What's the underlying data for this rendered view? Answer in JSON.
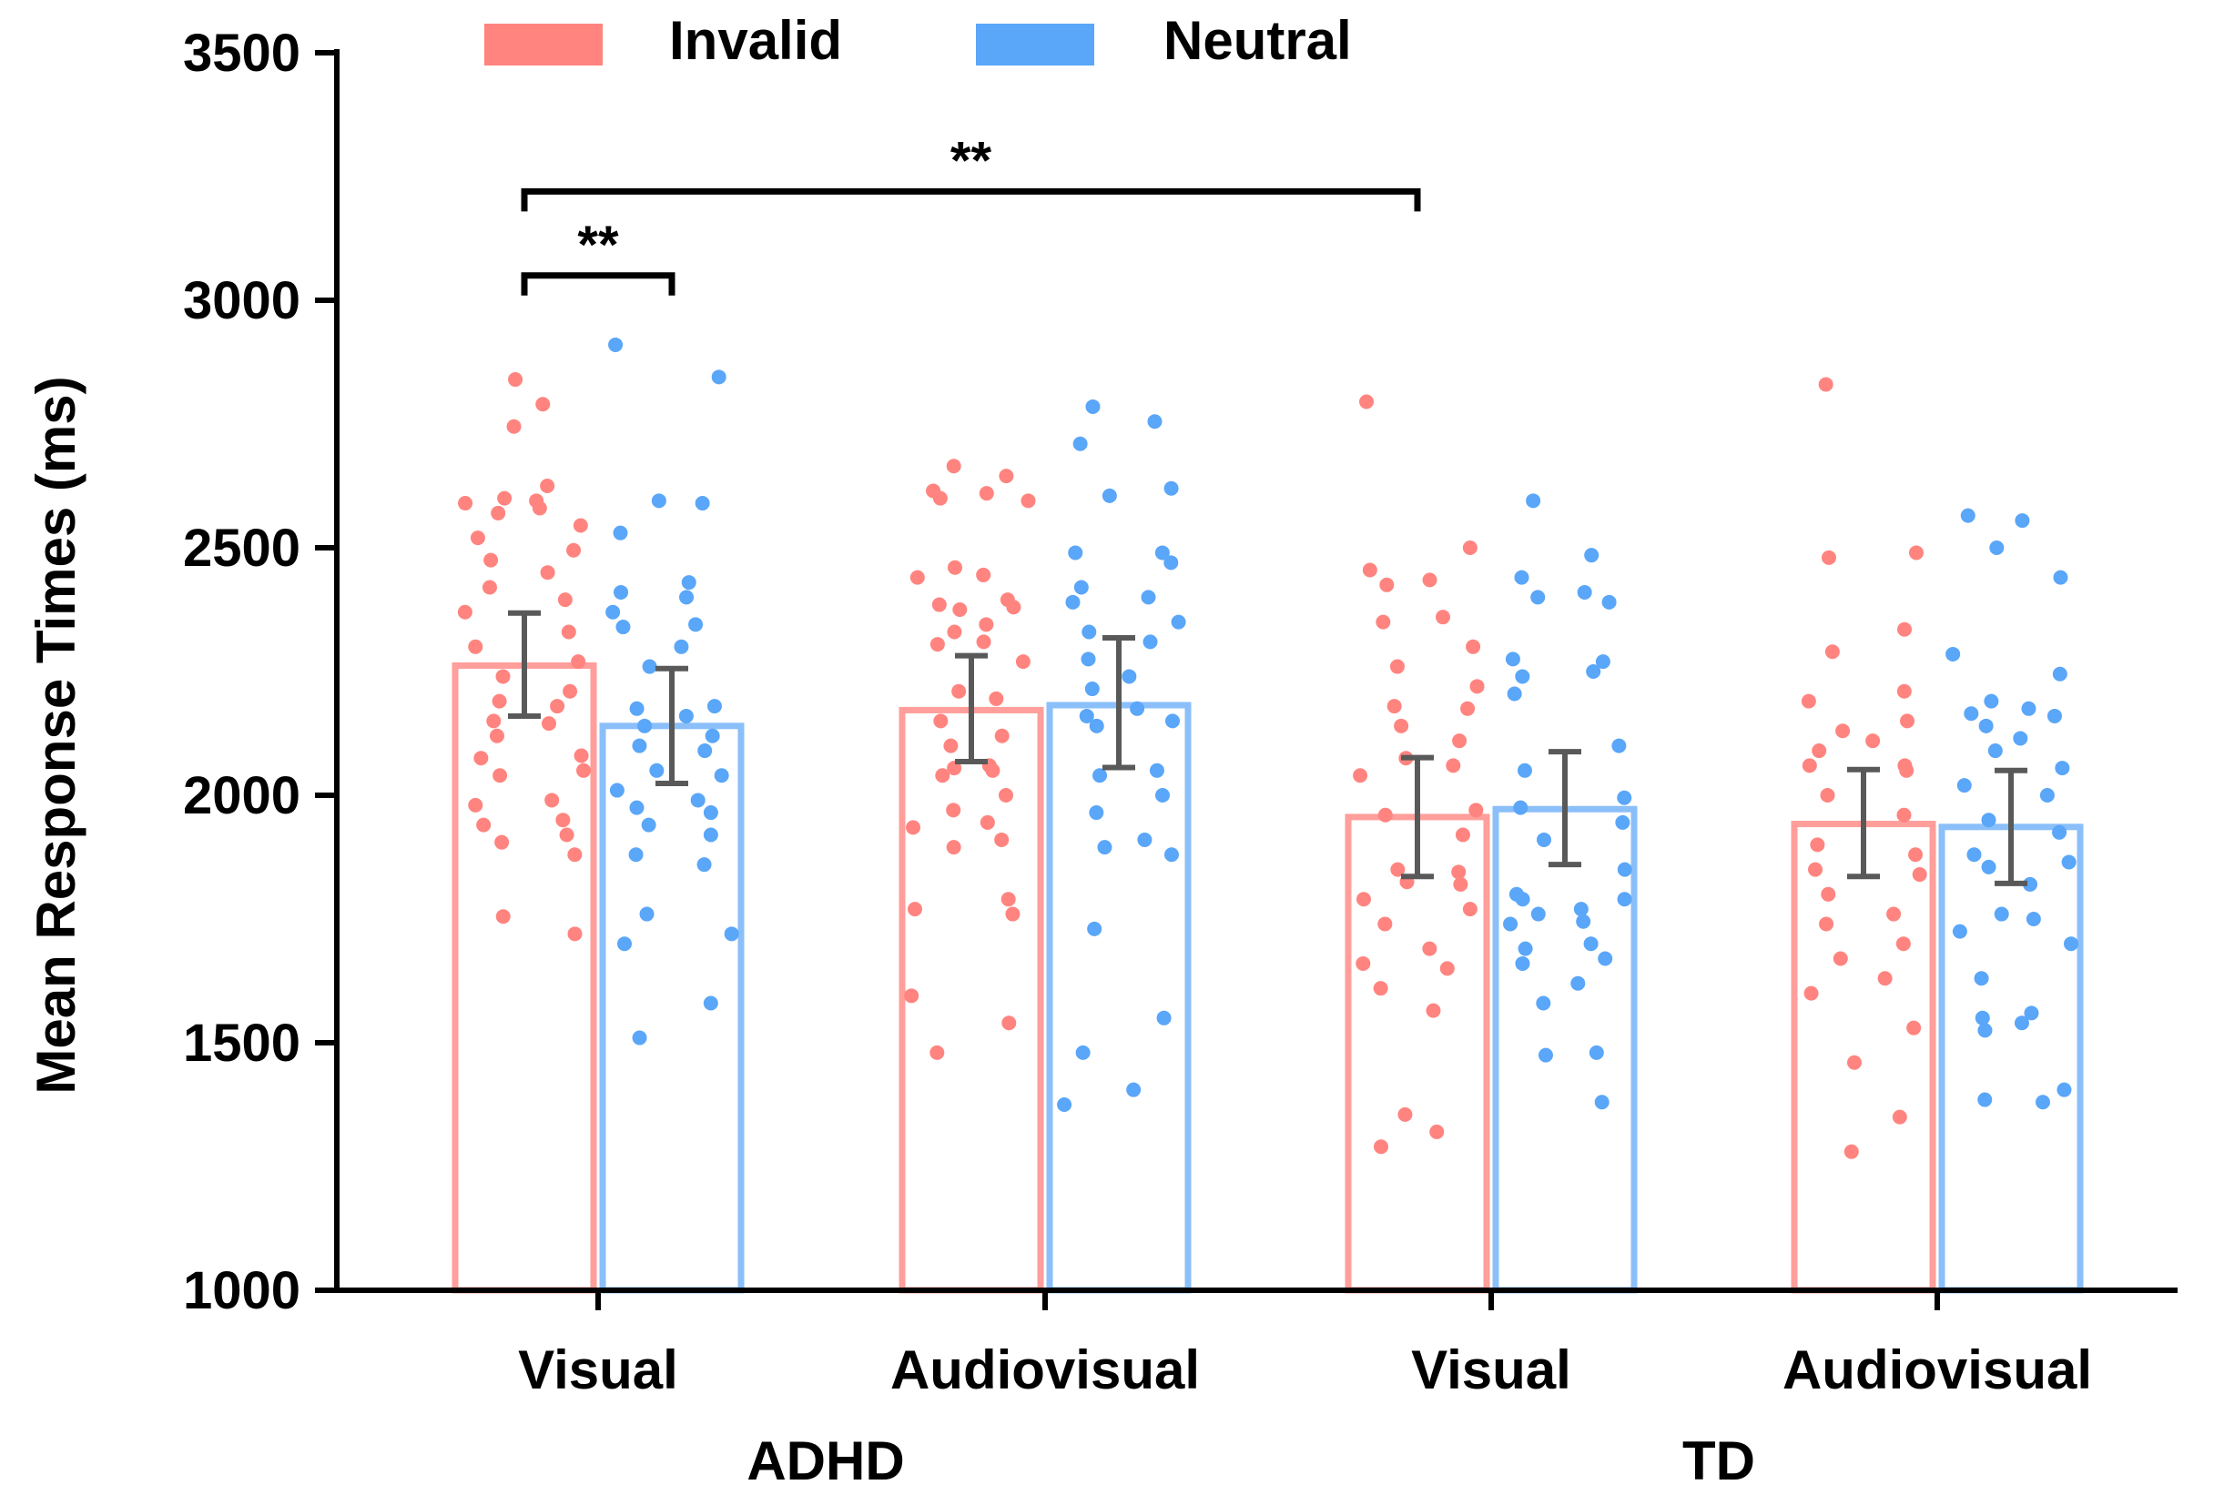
{
  "chart_data": {
    "type": "bar",
    "title": "",
    "xlabel": "",
    "ylabel": "Mean Response Times (ms)",
    "ylim": [
      1000,
      3500
    ],
    "yticks": [
      1000,
      1500,
      2000,
      2500,
      3000,
      3500
    ],
    "grid": false,
    "legend_position": "top",
    "groups": [
      {
        "label": "ADHD",
        "categories": [
          "Visual",
          "Audiovisual"
        ]
      },
      {
        "label": "TD",
        "categories": [
          "Visual",
          "Audiovisual"
        ]
      }
    ],
    "categories": [
      "Visual",
      "Audiovisual",
      "Visual",
      "Audiovisual"
    ],
    "series": [
      {
        "name": "Invalid",
        "color": "#FF847F",
        "bar_edge_color": "#FF9E9A",
        "values": [
          2262,
          2172,
          1956,
          1942
        ],
        "errors": [
          [
            2160,
            2368
          ],
          [
            2068,
            2282
          ],
          [
            1836,
            2076
          ],
          [
            1836,
            2052
          ]
        ],
        "points": [
          [
            2840,
            2790,
            2745,
            2625,
            2600,
            2595,
            2590,
            2580,
            2570,
            2545,
            2520,
            2495,
            2475,
            2450,
            2420,
            2395,
            2370,
            2330,
            2300,
            2270,
            2240,
            2210,
            2190,
            2180,
            2150,
            2145,
            2120,
            2080,
            2075,
            2050,
            2040,
            1990,
            1980,
            1950,
            1940,
            1920,
            1905,
            1880,
            1755,
            1720
          ],
          [
            2665,
            2645,
            2615,
            2610,
            2600,
            2595,
            2460,
            2445,
            2440,
            2395,
            2385,
            2380,
            2375,
            2345,
            2330,
            2310,
            2305,
            2270,
            2210,
            2195,
            2150,
            2120,
            2100,
            2060,
            2055,
            2050,
            2040,
            2000,
            1970,
            1945,
            1935,
            1910,
            1895,
            1790,
            1770,
            1760,
            1595,
            1540,
            1480
          ],
          [
            2795,
            2500,
            2455,
            2435,
            2425,
            2360,
            2350,
            2300,
            2260,
            2220,
            2180,
            2175,
            2140,
            2110,
            2075,
            2060,
            2040,
            1970,
            1960,
            1920,
            1850,
            1845,
            1825,
            1820,
            1790,
            1770,
            1740,
            1690,
            1660,
            1650,
            1610,
            1565,
            1355,
            1320,
            1290
          ],
          [
            2830,
            2490,
            2480,
            2335,
            2290,
            2210,
            2190,
            2150,
            2130,
            2110,
            2090,
            2060,
            2060,
            2050,
            2000,
            1960,
            1900,
            1880,
            1850,
            1840,
            1800,
            1760,
            1740,
            1700,
            1670,
            1630,
            1600,
            1530,
            1460,
            1350,
            1280
          ]
        ]
      },
      {
        "name": "Neutral",
        "color": "#5AA6F8",
        "bar_edge_color": "#8ABFF9",
        "values": [
          2140,
          2182,
          1972,
          1936
        ],
        "errors": [
          [
            2024,
            2256
          ],
          [
            2056,
            2318
          ],
          [
            1860,
            2088
          ],
          [
            1822,
            2050
          ]
        ],
        "points": [
          [
            2910,
            2845,
            2595,
            2590,
            2530,
            2430,
            2410,
            2400,
            2370,
            2345,
            2340,
            2300,
            2260,
            2180,
            2175,
            2160,
            2140,
            2120,
            2100,
            2090,
            2050,
            2040,
            2010,
            1990,
            1975,
            1965,
            1940,
            1920,
            1880,
            1860,
            1760,
            1720,
            1700,
            1580,
            1510
          ],
          [
            2785,
            2755,
            2710,
            2620,
            2605,
            2490,
            2490,
            2470,
            2420,
            2400,
            2390,
            2350,
            2330,
            2310,
            2275,
            2240,
            2215,
            2175,
            2160,
            2150,
            2140,
            2050,
            2040,
            2000,
            1965,
            1910,
            1895,
            1880,
            1730,
            1550,
            1480,
            1405,
            1375
          ],
          [
            2595,
            2485,
            2440,
            2410,
            2400,
            2390,
            2275,
            2270,
            2240,
            2250,
            2205,
            2100,
            2050,
            1995,
            1975,
            1945,
            1910,
            1850,
            1800,
            1790,
            1790,
            1770,
            1760,
            1745,
            1740,
            1700,
            1690,
            1670,
            1660,
            1620,
            1580,
            1480,
            1475,
            1380
          ],
          [
            2565,
            2555,
            2500,
            2440,
            2285,
            2245,
            2190,
            2175,
            2165,
            2160,
            2140,
            2115,
            2090,
            2055,
            2020,
            2000,
            1950,
            1925,
            1880,
            1865,
            1855,
            1820,
            1760,
            1750,
            1725,
            1700,
            1630,
            1560,
            1550,
            1540,
            1525,
            1405,
            1385,
            1380
          ]
        ]
      }
    ],
    "significance": [
      {
        "label": "**",
        "from": "ADHD Visual Invalid",
        "to": "ADHD Visual Neutral"
      },
      {
        "label": "**",
        "from": "ADHD Visual Invalid",
        "to": "TD Visual Invalid"
      }
    ]
  }
}
